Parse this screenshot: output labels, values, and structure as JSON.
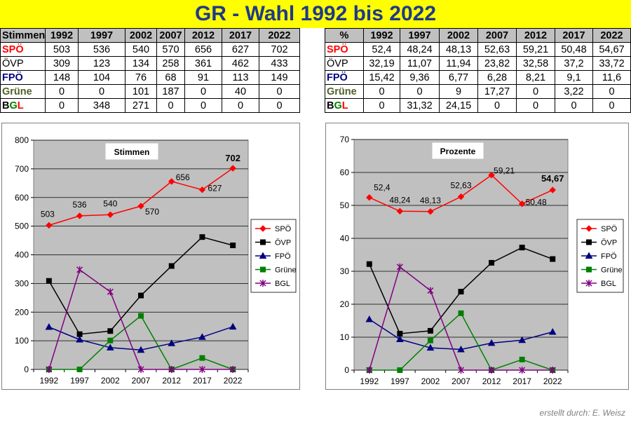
{
  "title": "GR - Wahl  1992 bis 2022",
  "footer": "erstellt durch: E. Weisz",
  "colors": {
    "SPÖ": "#ff0000",
    "ÖVP": "#000000",
    "FPÖ": "#000080",
    "Grüne": "#008000",
    "BGL": "#800080",
    "plot_bg": "#c0c0c0",
    "banner": "#ffff00"
  },
  "table_votes": {
    "corner": "Stimmen",
    "years": [
      "1992",
      "1997",
      "2002",
      "2007",
      "2012",
      "2017",
      "2022"
    ],
    "rows": [
      {
        "party": "SPÖ",
        "values": [
          "503",
          "536",
          "540",
          "570",
          "656",
          "627",
          "702"
        ]
      },
      {
        "party": "ÖVP",
        "values": [
          "309",
          "123",
          "134",
          "258",
          "361",
          "462",
          "433"
        ]
      },
      {
        "party": "FPÖ",
        "values": [
          "148",
          "104",
          "76",
          "68",
          "91",
          "113",
          "149"
        ]
      },
      {
        "party": "Grüne",
        "values": [
          "0",
          "0",
          "101",
          "187",
          "0",
          "40",
          "0"
        ]
      },
      {
        "party": "BGL",
        "values": [
          "0",
          "348",
          "271",
          "0",
          "0",
          "0",
          "0"
        ]
      }
    ]
  },
  "table_percent": {
    "corner": "%",
    "years": [
      "1992",
      "1997",
      "2002",
      "2007",
      "2012",
      "2017",
      "2022"
    ],
    "rows": [
      {
        "party": "SPÖ",
        "values": [
          "52,4",
          "48,24",
          "48,13",
          "52,63",
          "59,21",
          "50,48",
          "54,67"
        ]
      },
      {
        "party": "ÖVP",
        "values": [
          "32,19",
          "11,07",
          "11,94",
          "23,82",
          "32,58",
          "37,2",
          "33,72"
        ]
      },
      {
        "party": "FPÖ",
        "values": [
          "15,42",
          "9,36",
          "6,77",
          "6,28",
          "8,21",
          "9,1",
          "11,6"
        ]
      },
      {
        "party": "Grüne",
        "values": [
          "0",
          "0",
          "9",
          "17,27",
          "0",
          "3,22",
          "0"
        ]
      },
      {
        "party": "BGL",
        "values": [
          "0",
          "31,32",
          "24,15",
          "0",
          "0",
          "0",
          "0"
        ]
      }
    ]
  },
  "chart_data": [
    {
      "type": "line",
      "title": "Stimmen",
      "x": [
        "1992",
        "1997",
        "2002",
        "2007",
        "2012",
        "2017",
        "2022"
      ],
      "ylim": [
        0,
        800
      ],
      "yticks": [
        0,
        100,
        200,
        300,
        400,
        500,
        600,
        700,
        800
      ],
      "grid": true,
      "legend": "right",
      "series": [
        {
          "name": "SPÖ",
          "values": [
            503,
            536,
            540,
            570,
            656,
            627,
            702
          ],
          "labels": [
            "503",
            "536",
            "540",
            "570",
            "656",
            "627",
            "702"
          ],
          "marker": "diamond"
        },
        {
          "name": "ÖVP",
          "values": [
            309,
            123,
            134,
            258,
            361,
            462,
            433
          ],
          "marker": "square"
        },
        {
          "name": "FPÖ",
          "values": [
            148,
            104,
            76,
            68,
            91,
            113,
            149
          ],
          "marker": "triangle"
        },
        {
          "name": "Grüne",
          "values": [
            0,
            0,
            101,
            187,
            0,
            40,
            0
          ],
          "marker": "square"
        },
        {
          "name": "BGL",
          "values": [
            0,
            348,
            271,
            0,
            0,
            0,
            0
          ],
          "marker": "star"
        }
      ]
    },
    {
      "type": "line",
      "title": "Prozente",
      "x": [
        "1992",
        "1997",
        "2002",
        "2007",
        "2012",
        "2017",
        "2022"
      ],
      "ylim": [
        0,
        70
      ],
      "yticks": [
        0,
        10,
        20,
        30,
        40,
        50,
        60,
        70
      ],
      "grid": true,
      "legend": "right",
      "series": [
        {
          "name": "SPÖ",
          "values": [
            52.4,
            48.24,
            48.13,
            52.63,
            59.21,
            50.48,
            54.67
          ],
          "labels": [
            "52,4",
            "48,24",
            "48,13",
            "52,63",
            "59,21",
            "50,48",
            "54,67"
          ],
          "marker": "diamond"
        },
        {
          "name": "ÖVP",
          "values": [
            32.19,
            11.07,
            11.94,
            23.82,
            32.58,
            37.2,
            33.72
          ],
          "marker": "square"
        },
        {
          "name": "FPÖ",
          "values": [
            15.42,
            9.36,
            6.77,
            6.28,
            8.21,
            9.1,
            11.6
          ],
          "marker": "triangle"
        },
        {
          "name": "Grüne",
          "values": [
            0,
            0,
            9,
            17.27,
            0,
            3.22,
            0
          ],
          "marker": "square"
        },
        {
          "name": "BGL",
          "values": [
            0,
            31.32,
            24.15,
            0,
            0,
            0,
            0
          ],
          "marker": "star"
        }
      ]
    }
  ]
}
